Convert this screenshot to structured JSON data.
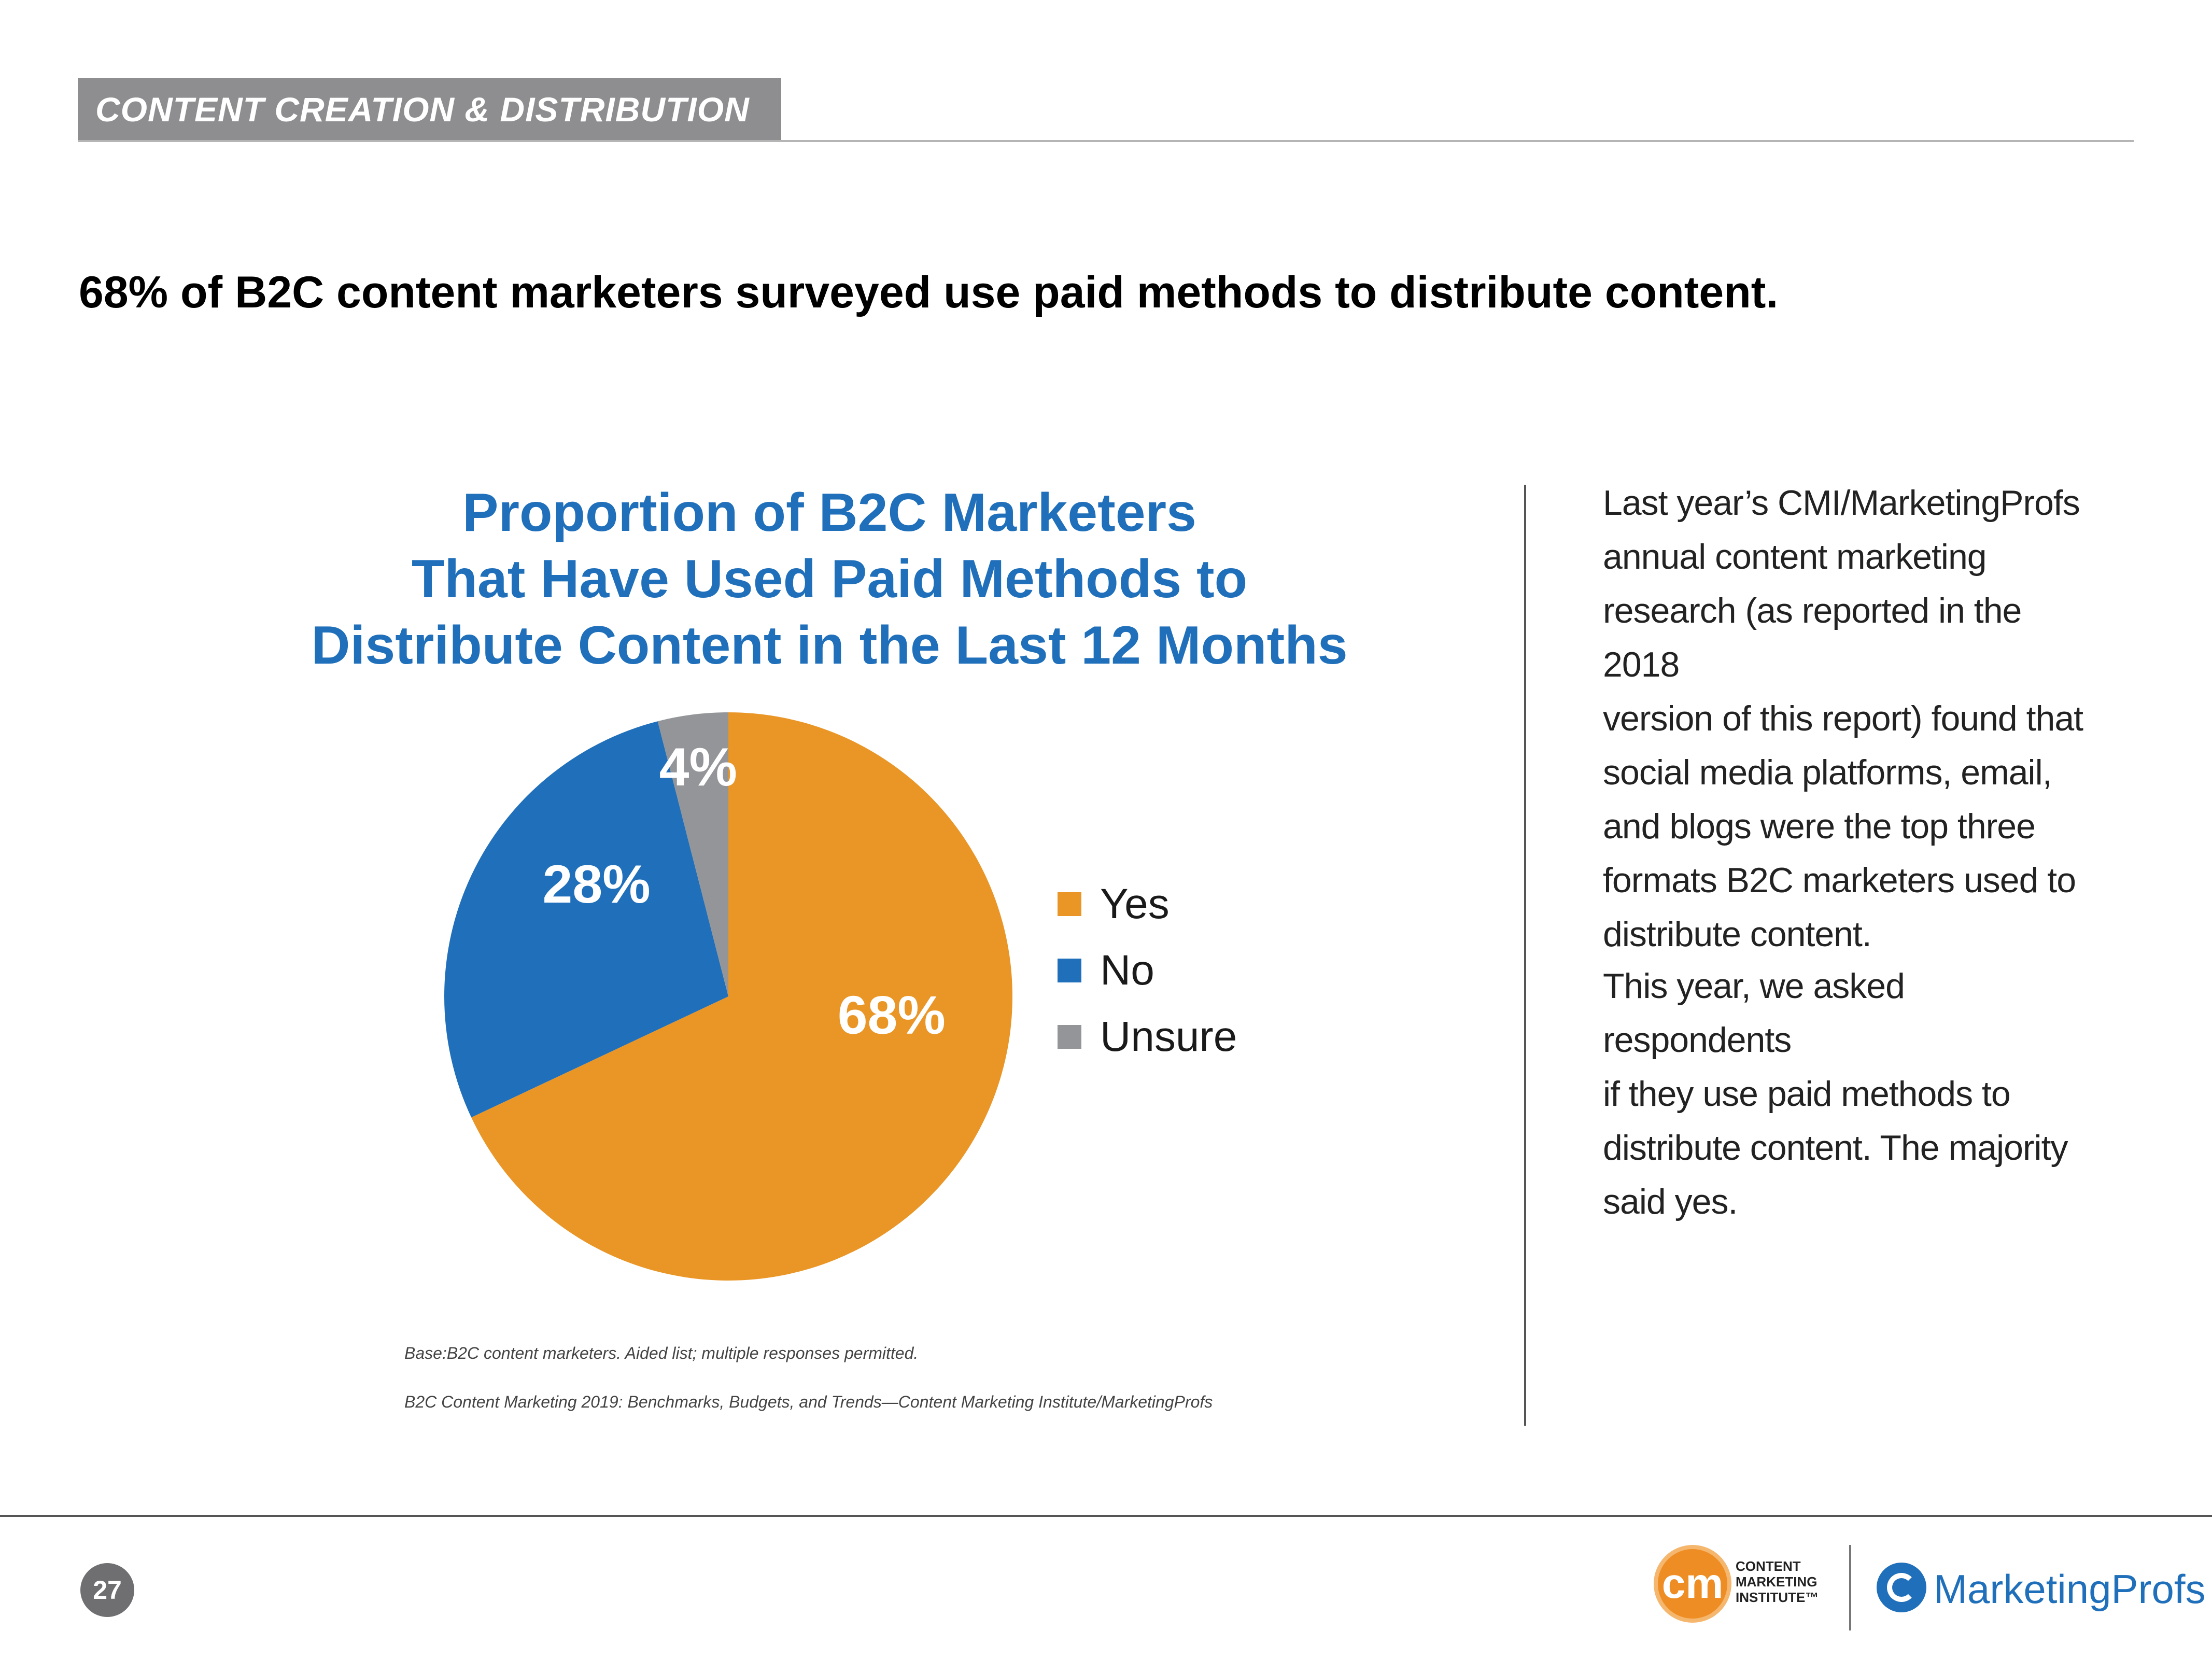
{
  "header": {
    "section_label": "CONTENT CREATION & DISTRIBUTION",
    "headline": "68% of B2C content marketers surveyed use paid methods to distribute content."
  },
  "chart_data": {
    "type": "pie",
    "title_lines": [
      "Proportion of B2C Marketers",
      "That Have Used Paid Methods to",
      "Distribute Content in the Last 12 Months"
    ],
    "categories": [
      "Yes",
      "No",
      "Unsure"
    ],
    "values": [
      68,
      28,
      4
    ],
    "labels": [
      "68%",
      "28%",
      "4%"
    ],
    "colors": [
      "#e99627",
      "#1f6fba",
      "#939598"
    ],
    "legend_position": "right"
  },
  "footnotes": {
    "base": "Base:B2C content marketers. Aided list; multiple responses permitted.",
    "source": "B2C Content Marketing 2019: Benchmarks, Budgets, and Trends—Content Marketing Institute/MarketingProfs"
  },
  "sidebar": {
    "paragraph_1_lines": [
      "Last year’s CMI/MarketingProfs",
      "annual content marketing",
      "research (as reported in the 2018",
      "version of this report) found that",
      "social media platforms, email,",
      "and blogs were the top three",
      "formats B2C marketers used to",
      "distribute content."
    ],
    "paragraph_2_lines": [
      "This year, we asked respondents",
      "if they use paid methods to",
      "distribute content. The majority",
      "said yes."
    ]
  },
  "footer": {
    "page_number": "27",
    "cmi_logo_mark": "cm",
    "cmi_logo_lines": [
      "CONTENT",
      "MARKETING",
      "INSTITUTE™"
    ],
    "mp_logo_text": "MarketingProfs"
  }
}
